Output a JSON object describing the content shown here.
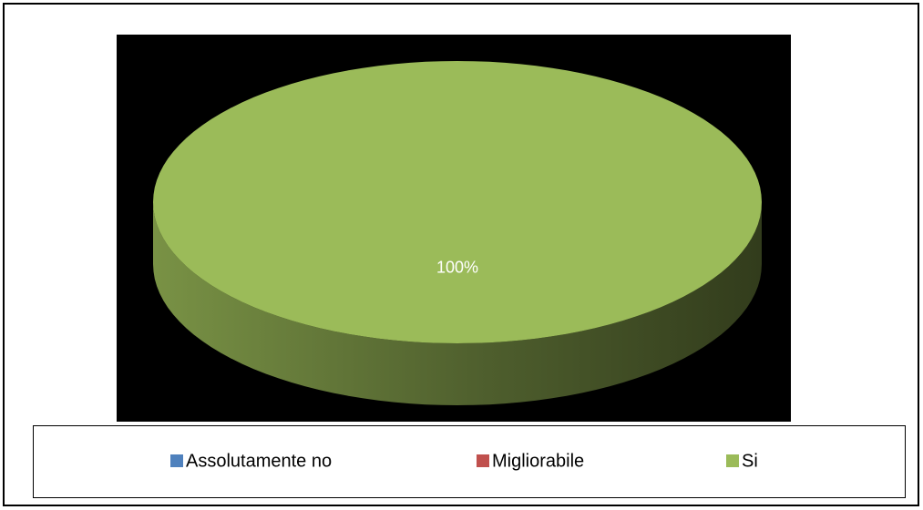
{
  "chart_data": {
    "type": "pie3d",
    "categories": [
      "Assolutamente no",
      "Migliorabile",
      "Si"
    ],
    "values": [
      0,
      0,
      100
    ],
    "value_labels": [
      null,
      null,
      "100%"
    ],
    "colors": [
      "#4f81bd",
      "#c0504d",
      "#9bbb59"
    ],
    "legend": "bottom"
  }
}
